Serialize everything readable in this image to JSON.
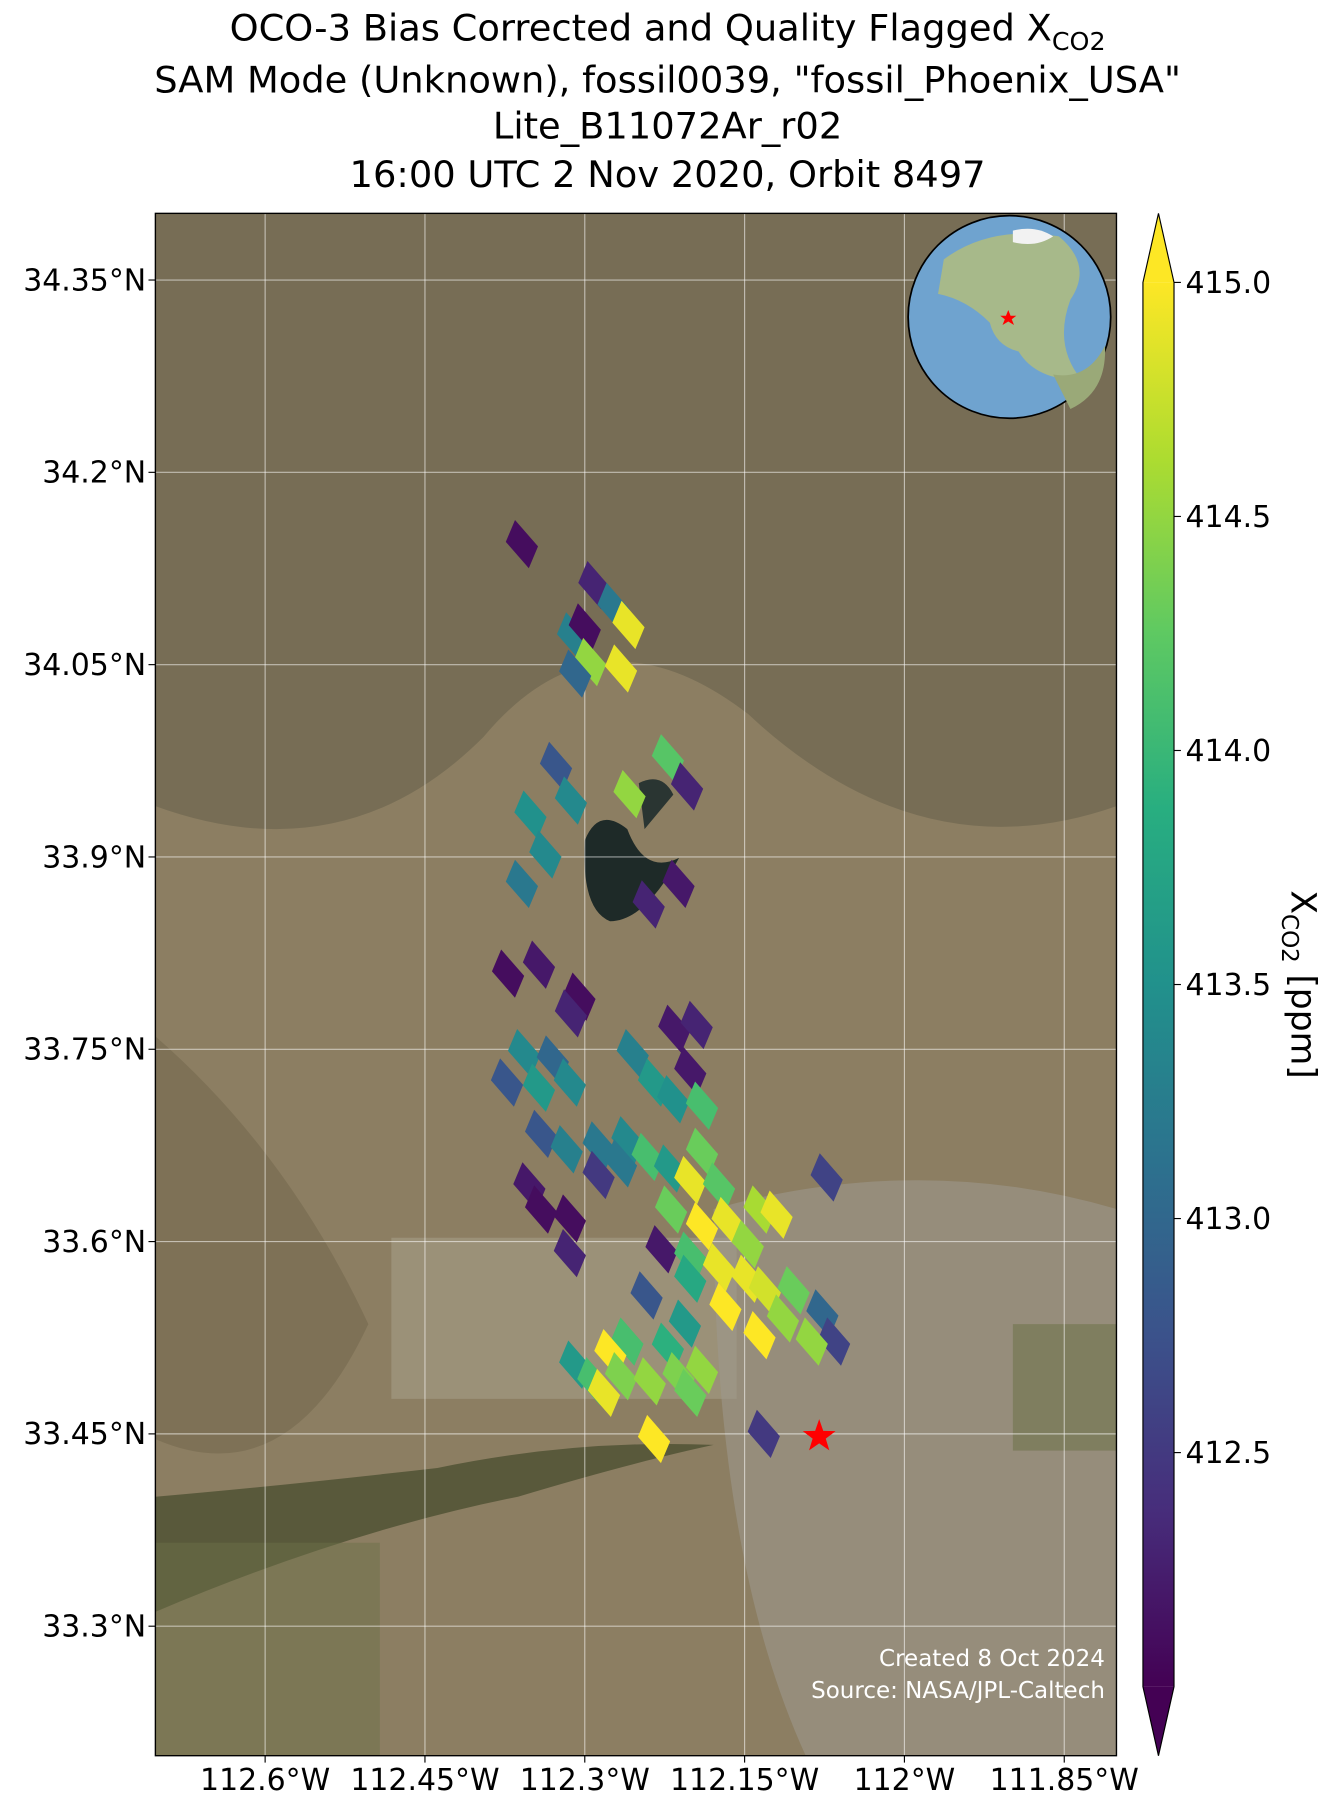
{
  "chart_data": {
    "type": "map",
    "title": [
      "OCO-3 Bias Corrected and Quality Flagged X",
      "SAM Mode (Unknown), fossil0039, \"fossil_Phoenix_USA\"",
      "Lite_B11072Ar_r02",
      "16:00 UTC 2 Nov 2020, Orbit 8497"
    ],
    "title_subscript": "CO2",
    "xlim": [
      -112.703,
      -111.801
    ],
    "ylim": [
      33.199,
      34.402
    ],
    "xticks": [
      {
        "value": -112.6,
        "label": "112.6°W"
      },
      {
        "value": -112.45,
        "label": "112.45°W"
      },
      {
        "value": -112.3,
        "label": "112.3°W"
      },
      {
        "value": -112.15,
        "label": "112.15°W"
      },
      {
        "value": -112.0,
        "label": "112°W"
      },
      {
        "value": -111.85,
        "label": "111.85°W"
      }
    ],
    "yticks": [
      {
        "value": 34.35,
        "label": "34.35°N"
      },
      {
        "value": 34.2,
        "label": "34.2°N"
      },
      {
        "value": 34.05,
        "label": "34.05°N"
      },
      {
        "value": 33.9,
        "label": "33.9°N"
      },
      {
        "value": 33.75,
        "label": "33.75°N"
      },
      {
        "value": 33.6,
        "label": "33.6°N"
      },
      {
        "value": 33.45,
        "label": "33.45°N"
      },
      {
        "value": 33.3,
        "label": "33.3°N"
      }
    ],
    "grid": true,
    "colormap": "viridis",
    "clim": [
      412.0,
      415.0
    ],
    "colorbar_extend": "both",
    "cticks": [
      {
        "value": 415,
        "label": "415.0"
      },
      414.5,
      {
        "value": 414,
        "label": "414.0"
      },
      413.5,
      {
        "value": 413,
        "label": "413.0"
      },
      412.5
    ],
    "colorbar_label": "X",
    "colorbar_label_subscript": "CO2",
    "colorbar_label_units": "[ppm]",
    "x": [
      -112.359,
      -112.291,
      -112.311,
      -112.3,
      -112.273,
      -112.259,
      -112.295,
      -112.309,
      -112.266,
      -112.327,
      -112.313,
      -112.351,
      -112.337,
      -112.359,
      -112.222,
      -112.204,
      -112.258,
      -112.212,
      -112.24,
      -112.372,
      -112.343,
      -112.305,
      -112.313,
      -112.216,
      -112.195,
      -112.201,
      -112.357,
      -112.33,
      -112.373,
      -112.343,
      -112.314,
      -112.255,
      -112.235,
      -112.217,
      -112.19,
      -112.341,
      -112.317,
      -112.287,
      -112.26,
      -112.287,
      -112.266,
      -112.241,
      -112.22,
      -112.19,
      -112.201,
      -112.174,
      -112.219,
      -112.352,
      -112.341,
      -112.314,
      -112.314,
      -112.19,
      -112.166,
      -112.136,
      -112.12,
      -112.228,
      -112.201,
      -112.174,
      -112.147,
      -112.147,
      -112.201,
      -112.168,
      -112.131,
      -112.104,
      -112.073,
      -112.077,
      -112.066,
      -112.087,
      -112.114,
      -112.136,
      -112.242,
      -112.206,
      -112.222,
      -112.26,
      -112.276,
      -112.309,
      -112.292,
      -112.266,
      -112.239,
      -112.212,
      -112.19,
      -112.201,
      -112.282,
      -112.235,
      -112.132
    ],
    "y": [
      34.144,
      34.112,
      34.072,
      34.079,
      34.095,
      34.081,
      34.052,
      34.043,
      34.047,
      33.971,
      33.944,
      33.933,
      33.902,
      33.879,
      33.977,
      33.955,
      33.949,
      33.879,
      33.863,
      33.809,
      33.816,
      33.791,
      33.778,
      33.766,
      33.769,
      33.733,
      33.747,
      33.742,
      33.724,
      33.72,
      33.724,
      33.747,
      33.724,
      33.711,
      33.706,
      33.684,
      33.672,
      33.675,
      33.679,
      33.652,
      33.661,
      33.666,
      33.657,
      33.67,
      33.648,
      33.643,
      33.625,
      33.643,
      33.625,
      33.618,
      33.591,
      33.612,
      33.616,
      33.625,
      33.621,
      33.594,
      33.589,
      33.58,
      33.598,
      33.571,
      33.571,
      33.549,
      33.562,
      33.562,
      33.65,
      33.544,
      33.522,
      33.522,
      33.54,
      33.527,
      33.558,
      33.536,
      33.518,
      33.522,
      33.513,
      33.504,
      33.491,
      33.495,
      33.491,
      33.495,
      33.5,
      33.482,
      33.482,
      33.446,
      33.45
    ],
    "values": [
      412.1,
      412.3,
      413.3,
      412.1,
      413.2,
      414.9,
      414.5,
      413.0,
      414.9,
      412.8,
      413.4,
      413.5,
      413.4,
      413.2,
      414.2,
      412.3,
      414.5,
      412.2,
      412.3,
      412.1,
      412.2,
      412.1,
      412.3,
      412.2,
      412.3,
      412.2,
      413.4,
      413.0,
      412.8,
      413.6,
      413.4,
      413.3,
      413.6,
      413.5,
      414.1,
      412.8,
      413.3,
      413.2,
      413.4,
      412.5,
      413.2,
      414.1,
      413.6,
      414.3,
      414.9,
      414.2,
      414.3,
      412.2,
      412.1,
      412.1,
      412.3,
      415.0,
      414.9,
      414.6,
      414.9,
      412.2,
      414.1,
      414.9,
      414.5,
      414.9,
      413.8,
      415.0,
      414.8,
      414.3,
      412.6,
      413.0,
      412.6,
      414.5,
      414.5,
      415.0,
      412.8,
      413.6,
      413.9,
      414.1,
      415.0,
      413.6,
      414.1,
      414.4,
      414.5,
      414.4,
      414.5,
      414.3,
      414.9,
      415.0,
      412.5
    ],
    "target": {
      "lon": -112.08,
      "lat": 33.448,
      "color": "#ff0000"
    },
    "annotations": [
      "Created 8 Oct 2024",
      "Source: NASA/JPL-Caltech"
    ]
  }
}
